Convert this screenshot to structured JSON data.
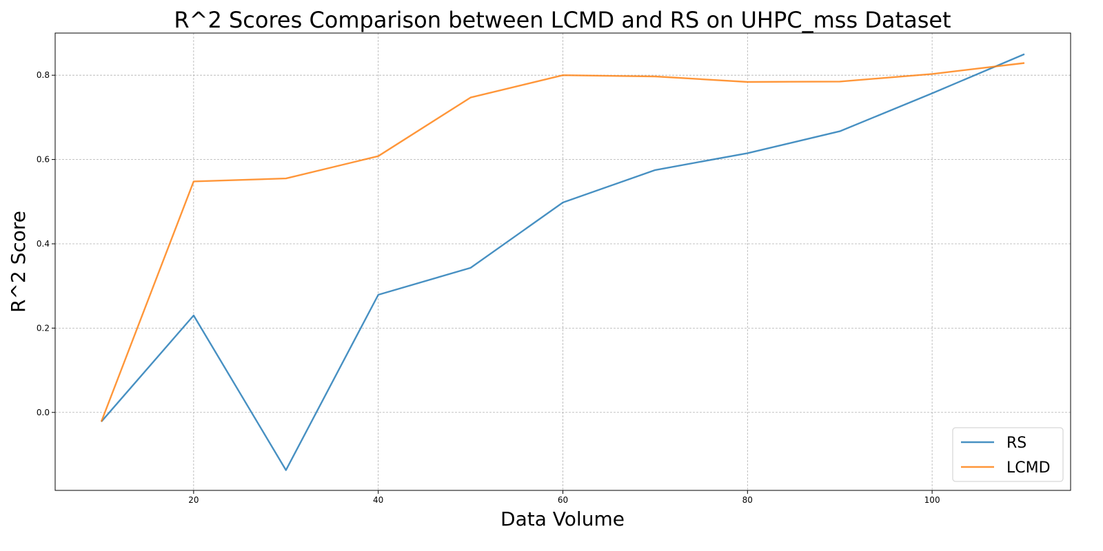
{
  "chart_data": {
    "type": "line",
    "title": "R^2 Scores Comparison between LCMD and RS on UHPC_mss Dataset",
    "xlabel": "Data Volume",
    "ylabel": "R^2 Score",
    "x": [
      10,
      20,
      30,
      40,
      50,
      60,
      70,
      80,
      90,
      100,
      110
    ],
    "xlim": [
      5,
      115
    ],
    "ylim": [
      -0.185,
      0.9
    ],
    "xticks": [
      20,
      40,
      60,
      80,
      100
    ],
    "yticks": [
      0.0,
      0.2,
      0.4,
      0.6,
      0.8
    ],
    "grid": true,
    "legend_position": "bottom-right",
    "series": [
      {
        "name": "RS",
        "color": "#1f77b4",
        "values": [
          -0.022,
          0.23,
          -0.137,
          0.279,
          0.343,
          0.498,
          0.575,
          0.615,
          0.667,
          0.757,
          0.85
        ]
      },
      {
        "name": "LCMD",
        "color": "#ff7f0e",
        "values": [
          -0.022,
          0.548,
          0.555,
          0.608,
          0.747,
          0.8,
          0.797,
          0.784,
          0.785,
          0.803,
          0.829
        ]
      }
    ]
  }
}
